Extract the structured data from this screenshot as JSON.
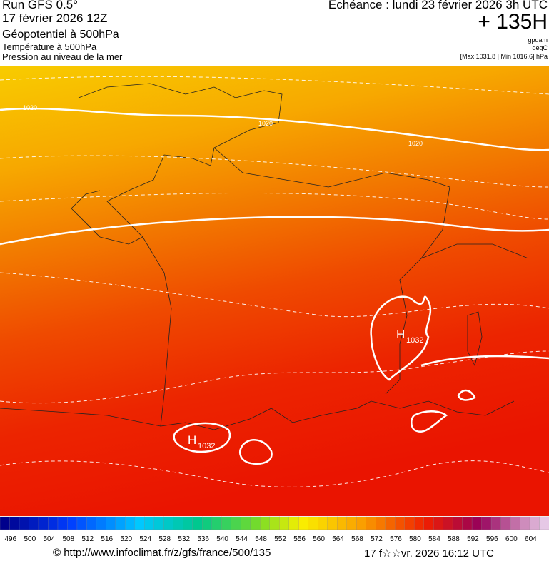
{
  "header": {
    "run": "Run GFS 0.5°",
    "date": "17 février 2026 12Z",
    "field1": "Géopotentiel à 500hPa",
    "field2": "Température à 500hPa",
    "field3": "Pression au niveau de la mer",
    "echeance": "Echéance : lundi 23 février 2026 3h UTC",
    "lead": "+ 135H",
    "unit1": "gpdam",
    "unit2": "degC",
    "range": "[Max 1031.8 | Min 1016.6] hPa"
  },
  "map": {
    "isobar_labels": [
      "1020",
      "1020",
      "1020"
    ],
    "highs": [
      {
        "letter": "H",
        "value": "1032"
      },
      {
        "letter": "H",
        "value": "1032"
      }
    ]
  },
  "colorbar": {
    "labels": [
      496,
      500,
      504,
      508,
      512,
      516,
      520,
      524,
      528,
      532,
      536,
      540,
      544,
      548,
      552,
      556,
      560,
      564,
      568,
      572,
      576,
      580,
      584,
      588,
      592,
      596,
      600,
      604
    ]
  },
  "footer": {
    "url": "© http://www.infoclimat.fr/z/gfs/france/500/135",
    "timestamp": "17 f☆☆vr. 2026 16:12 UTC"
  }
}
